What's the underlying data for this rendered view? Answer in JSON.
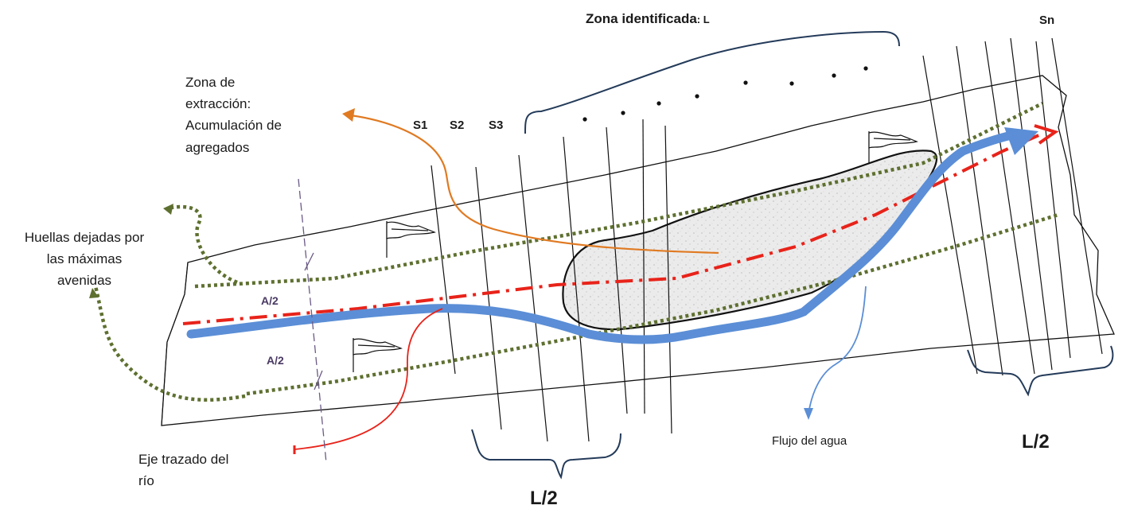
{
  "labels": {
    "zone_identified": "Zona identificada",
    "zone_identified_letter": ": L",
    "section_last": "Sn",
    "section_1": "S1",
    "section_2": "S2",
    "section_3": "S3",
    "extraction_zone": [
      "Zona de",
      "extracción:",
      "Acumulación de",
      "agregados"
    ],
    "flood_marks": [
      "Huellas dejadas por",
      "las máximas",
      "avenidas"
    ],
    "half_width_top": "A/2",
    "half_width_bottom": "A/2",
    "river_axis": [
      "Eje trazado del",
      "río"
    ],
    "water_flow": "Flujo del agua",
    "half_length_right": "L/2",
    "half_length_bottom": "L/2"
  },
  "colors": {
    "river_flow": "#5b8ed6",
    "axis_line": "#e8231a",
    "flood_marks": "#5e7030",
    "extraction_arrow": "#e07a22",
    "river_axis_arrow": "#e8231a",
    "flow_pointer": "#5b8ed6",
    "braces": "#243b5a",
    "outline": "#111111",
    "accumulation_fill": "#e9e9e9",
    "width_line": "#6a5a85"
  },
  "icons": [
    "flag-icon",
    "flag-icon",
    "flag-icon",
    "flag-icon"
  ]
}
